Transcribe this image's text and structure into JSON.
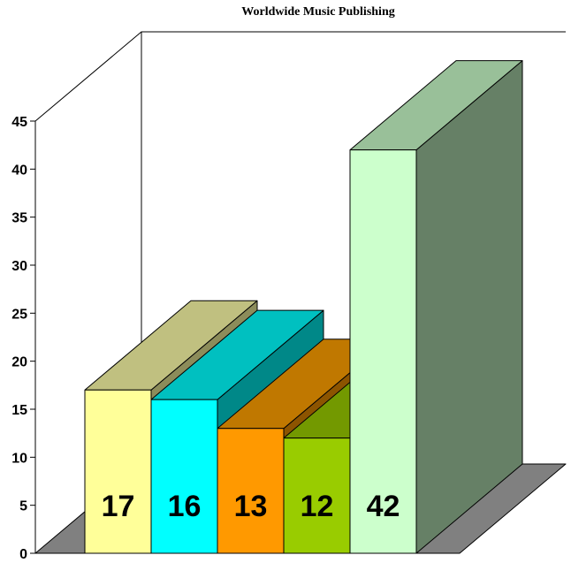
{
  "chart_data": {
    "type": "bar",
    "title": "Worldwide Music Publishing",
    "categories": [
      "",
      "",
      "",
      "",
      ""
    ],
    "values": [
      17,
      16,
      13,
      12,
      42
    ],
    "data_labels": [
      "17",
      "16",
      "13",
      "12",
      "42"
    ],
    "ylim": [
      0,
      45
    ],
    "yticks": [
      0,
      5,
      10,
      15,
      20,
      25,
      30,
      35,
      40,
      45
    ],
    "ytick_labels": [
      "0",
      "5",
      "10",
      "15",
      "20",
      "25",
      "30",
      "35",
      "40",
      "45"
    ],
    "xlabel": "",
    "ylabel": "",
    "legend": "none",
    "grid": false,
    "style": "3d",
    "colors": {
      "fronts": [
        "#ffff99",
        "#00ffff",
        "#ff9900",
        "#99cc00",
        "#ccffcc"
      ],
      "tops": [
        "#c0c080",
        "#00c0c0",
        "#c07800",
        "#739900",
        "#99c099"
      ],
      "sides": [
        "#8c8c5a",
        "#008888",
        "#8c5400",
        "#557000",
        "#668066"
      ],
      "floor": "#808080"
    }
  }
}
